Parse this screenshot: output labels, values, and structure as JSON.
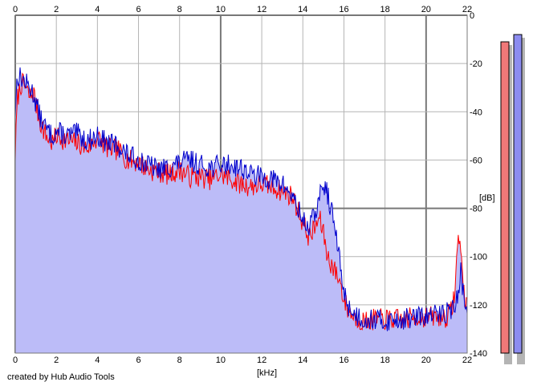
{
  "chart_data": {
    "type": "area",
    "xlabel": "[kHz]",
    "ylabel": "[dB]",
    "credit": "created by Hub Audio Tools",
    "xlim": [
      0,
      22
    ],
    "ylim": [
      -140,
      0
    ],
    "x_ticks": [
      0,
      2,
      4,
      6,
      8,
      10,
      12,
      14,
      16,
      18,
      20,
      22
    ],
    "y_ticks": [
      0,
      -20,
      -40,
      -60,
      -80,
      -100,
      -120,
      -140
    ],
    "x_tick_labels": [
      "0",
      "2",
      "4",
      "6",
      "8",
      "10",
      "12",
      "14",
      "16",
      "18",
      "20",
      "22"
    ],
    "y_tick_labels": [
      "0",
      "-20",
      "-40",
      "-60",
      "-80",
      "-100",
      "-120",
      "-140"
    ],
    "grid": true,
    "legend": "none",
    "colors": {
      "background": "#ffffff",
      "grid": "#b4b4b4",
      "grid_major": "#787878",
      "fill": "#bcbcf8",
      "series_left": "#ff0000",
      "series_right": "#0000cc",
      "meter_left": "#f07878",
      "meter_right": "#8c8cf0",
      "meter_shadow": "#b4b4b4"
    },
    "series": [
      {
        "x": [
          0.0,
          0.1,
          0.3,
          0.5,
          0.7,
          0.9,
          1.0,
          1.2,
          1.5,
          1.8,
          2.0,
          2.5,
          3.0,
          3.5,
          4.0,
          4.5,
          5.0,
          5.5,
          6.0,
          6.5,
          7.0,
          7.5,
          8.0,
          8.5,
          9.0,
          9.5,
          10.0,
          10.5,
          11.0,
          11.5,
          12.0,
          12.5,
          13.0,
          13.5,
          14.0,
          14.3,
          14.6,
          14.8,
          15.0,
          15.2,
          15.5,
          15.8,
          16.0,
          16.2,
          16.5,
          17.0,
          17.5,
          18.0,
          18.5,
          19.0,
          19.5,
          20.0,
          20.5,
          21.0,
          21.2,
          21.4,
          21.5,
          21.6,
          21.7,
          21.8,
          22.0
        ],
        "values": [
          -58,
          -35,
          -28,
          -30,
          -34,
          -32,
          -37,
          -44,
          -50,
          -53,
          -50,
          -52,
          -53,
          -55,
          -51,
          -55,
          -56,
          -60,
          -61,
          -64,
          -65,
          -66,
          -64,
          -67,
          -67,
          -68,
          -66,
          -68,
          -70,
          -71,
          -70,
          -71,
          -73,
          -75,
          -86,
          -92,
          -88,
          -84,
          -90,
          -100,
          -105,
          -110,
          -118,
          -122,
          -125,
          -127,
          -126,
          -126,
          -126,
          -126,
          -125,
          -125,
          -125,
          -125,
          -123,
          -115,
          -100,
          -90,
          -98,
          -112,
          -122
        ]
      },
      {
        "x": [
          0.0,
          0.1,
          0.3,
          0.5,
          0.7,
          0.9,
          1.0,
          1.2,
          1.5,
          1.8,
          2.0,
          2.5,
          3.0,
          3.5,
          4.0,
          4.5,
          5.0,
          5.5,
          6.0,
          6.5,
          7.0,
          7.5,
          8.0,
          8.5,
          9.0,
          9.5,
          10.0,
          10.5,
          11.0,
          11.5,
          12.0,
          12.5,
          13.0,
          13.5,
          14.0,
          14.3,
          14.6,
          14.8,
          15.0,
          15.2,
          15.5,
          15.8,
          16.0,
          16.2,
          16.5,
          17.0,
          17.5,
          18.0,
          18.5,
          19.0,
          19.5,
          20.0,
          20.5,
          21.0,
          21.2,
          21.4,
          21.5,
          21.6,
          21.7,
          21.8,
          22.0
        ],
        "values": [
          -40,
          -25,
          -26,
          -28,
          -30,
          -33,
          -36,
          -42,
          -47,
          -50,
          -48,
          -50,
          -49,
          -52,
          -50,
          -53,
          -54,
          -58,
          -60,
          -62,
          -64,
          -63,
          -61,
          -60,
          -62,
          -63,
          -62,
          -62,
          -63,
          -66,
          -67,
          -68,
          -70,
          -75,
          -85,
          -88,
          -82,
          -76,
          -70,
          -74,
          -85,
          -102,
          -115,
          -120,
          -124,
          -126,
          -126,
          -127,
          -126,
          -126,
          -125,
          -125,
          -124,
          -123,
          -122,
          -120,
          -118,
          -115,
          -105,
          -115,
          -125
        ]
      }
    ],
    "meters": [
      {
        "channel": "left",
        "level_db": -11
      },
      {
        "channel": "right",
        "level_db": -8
      }
    ]
  }
}
